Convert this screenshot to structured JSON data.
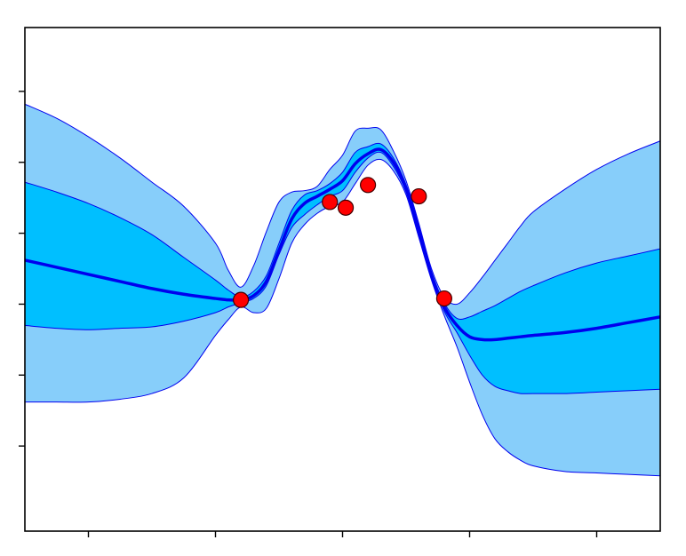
{
  "chart_data": {
    "type": "line",
    "title": "",
    "xlabel": "",
    "ylabel": "",
    "xlim": [
      0,
      10
    ],
    "ylim": [
      -0.6,
      2.95
    ],
    "grid": false,
    "legend": "none",
    "x_ticks": [
      1,
      3,
      5,
      7,
      9
    ],
    "y_ticks": [
      0,
      0.5,
      1,
      1.5,
      2,
      2.5
    ],
    "x": [
      0,
      0.5,
      1,
      1.5,
      2,
      2.5,
      3,
      3.2,
      3.4,
      3.6,
      3.8,
      4.0,
      4.2,
      4.4,
      4.6,
      4.8,
      5.0,
      5.2,
      5.4,
      5.6,
      5.8,
      6.0,
      6.2,
      6.4,
      6.6,
      6.8,
      7.0,
      7.2,
      7.4,
      7.6,
      7.8,
      8.0,
      8.5,
      9.0,
      9.5,
      10.0
    ],
    "series": [
      {
        "role": "mean",
        "color": "#0000ee",
        "values": [
          1.31,
          1.26,
          1.21,
          1.16,
          1.11,
          1.07,
          1.04,
          1.03,
          1.03,
          1.06,
          1.16,
          1.38,
          1.6,
          1.71,
          1.76,
          1.81,
          1.87,
          1.99,
          2.06,
          2.09,
          2.0,
          1.82,
          1.52,
          1.2,
          0.98,
          0.85,
          0.77,
          0.75,
          0.75,
          0.76,
          0.77,
          0.78,
          0.8,
          0.83,
          0.87,
          0.91
        ]
      },
      {
        "role": "band-1sigma",
        "color": "#00bfff",
        "lower": [
          0.85,
          0.83,
          0.82,
          0.83,
          0.84,
          0.88,
          0.94,
          0.98,
          1.01,
          1.04,
          1.13,
          1.35,
          1.54,
          1.63,
          1.7,
          1.76,
          1.8,
          1.93,
          2.03,
          2.07,
          1.97,
          1.79,
          1.49,
          1.19,
          0.95,
          0.8,
          0.64,
          0.5,
          0.42,
          0.39,
          0.37,
          0.37,
          0.37,
          0.38,
          0.39,
          0.4
        ],
        "upper": [
          1.86,
          1.79,
          1.71,
          1.61,
          1.49,
          1.33,
          1.17,
          1.1,
          1.05,
          1.09,
          1.2,
          1.43,
          1.66,
          1.77,
          1.8,
          1.85,
          1.93,
          2.07,
          2.11,
          2.13,
          2.03,
          1.84,
          1.55,
          1.23,
          1.01,
          0.9,
          0.91,
          0.95,
          0.99,
          1.04,
          1.09,
          1.13,
          1.22,
          1.29,
          1.34,
          1.39
        ]
      },
      {
        "role": "band-2sigma",
        "color": "#87cefa",
        "lower": [
          0.31,
          0.31,
          0.31,
          0.33,
          0.37,
          0.48,
          0.78,
          0.89,
          0.98,
          0.94,
          0.97,
          1.18,
          1.43,
          1.56,
          1.64,
          1.69,
          1.72,
          1.85,
          1.98,
          2.02,
          1.94,
          1.77,
          1.47,
          1.17,
          0.92,
          0.7,
          0.45,
          0.22,
          0.05,
          -0.04,
          -0.1,
          -0.14,
          -0.18,
          -0.19,
          -0.2,
          -0.21
        ],
        "upper": [
          2.41,
          2.31,
          2.18,
          2.03,
          1.86,
          1.69,
          1.43,
          1.24,
          1.12,
          1.27,
          1.51,
          1.72,
          1.79,
          1.8,
          1.83,
          1.95,
          2.05,
          2.22,
          2.24,
          2.23,
          2.08,
          1.87,
          1.57,
          1.25,
          1.05,
          1.0,
          1.08,
          1.19,
          1.31,
          1.43,
          1.55,
          1.65,
          1.81,
          1.95,
          2.06,
          2.15
        ]
      }
    ],
    "points": [
      {
        "x": 3.4,
        "y": 1.03
      },
      {
        "x": 4.8,
        "y": 1.72
      },
      {
        "x": 5.05,
        "y": 1.68
      },
      {
        "x": 5.4,
        "y": 1.84
      },
      {
        "x": 6.2,
        "y": 1.76
      },
      {
        "x": 6.6,
        "y": 1.04
      }
    ],
    "point_style": {
      "fill": "#ff0000",
      "stroke": "#440000"
    }
  }
}
